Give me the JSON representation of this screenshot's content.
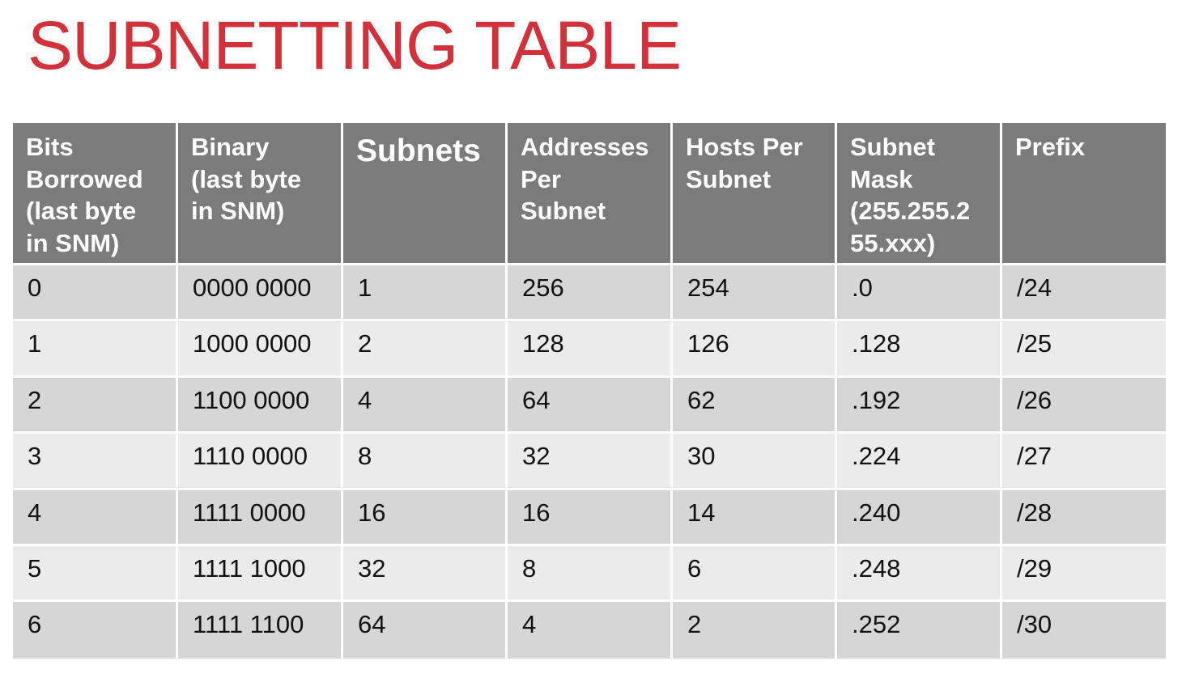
{
  "title": "SUBNETTING TABLE",
  "headers": [
    "Bits Borrowed (last byte in SNM)",
    "Binary (last byte in SNM)",
    "Subnets",
    "Addresses Per Subnet",
    "Hosts Per Subnet",
    "Subnet Mask (255.255.255.xxx)",
    "Prefix"
  ],
  "header_lines": [
    [
      "Bits",
      "Borrowed",
      "(last byte",
      "in SNM)"
    ],
    [
      "Binary",
      "(last byte",
      "in SNM)"
    ],
    [
      "Subnets"
    ],
    [
      "Addresses",
      "Per",
      "Subnet"
    ],
    [
      "Hosts Per",
      "Subnet"
    ],
    [
      "Subnet",
      "Mask",
      "(255.255.2",
      "55.xxx)"
    ],
    [
      "Prefix"
    ]
  ],
  "rows": [
    [
      "0",
      "0000 0000",
      "1",
      "256",
      "254",
      ".0",
      "/24"
    ],
    [
      "1",
      "1000 0000",
      "2",
      "128",
      "126",
      ".128",
      "/25"
    ],
    [
      "2",
      "1100 0000",
      "4",
      "64",
      "62",
      ".192",
      "/26"
    ],
    [
      "3",
      "1110 0000",
      "8",
      "32",
      "30",
      ".224",
      "/27"
    ],
    [
      "4",
      "1111 0000",
      "16",
      "16",
      "14",
      ".240",
      "/28"
    ],
    [
      "5",
      "1111 1000",
      "32",
      "8",
      "6",
      ".248",
      "/29"
    ],
    [
      "6",
      "1111 1100",
      "64",
      "4",
      "2",
      ".252",
      "/30"
    ]
  ],
  "colors": {
    "title": "#d0313a",
    "header_bg": "#7b7b7b",
    "header_text": "#ffffff",
    "row_odd": "#d6d6d6",
    "row_even": "#ebebeb",
    "cell_text": "#111111"
  }
}
